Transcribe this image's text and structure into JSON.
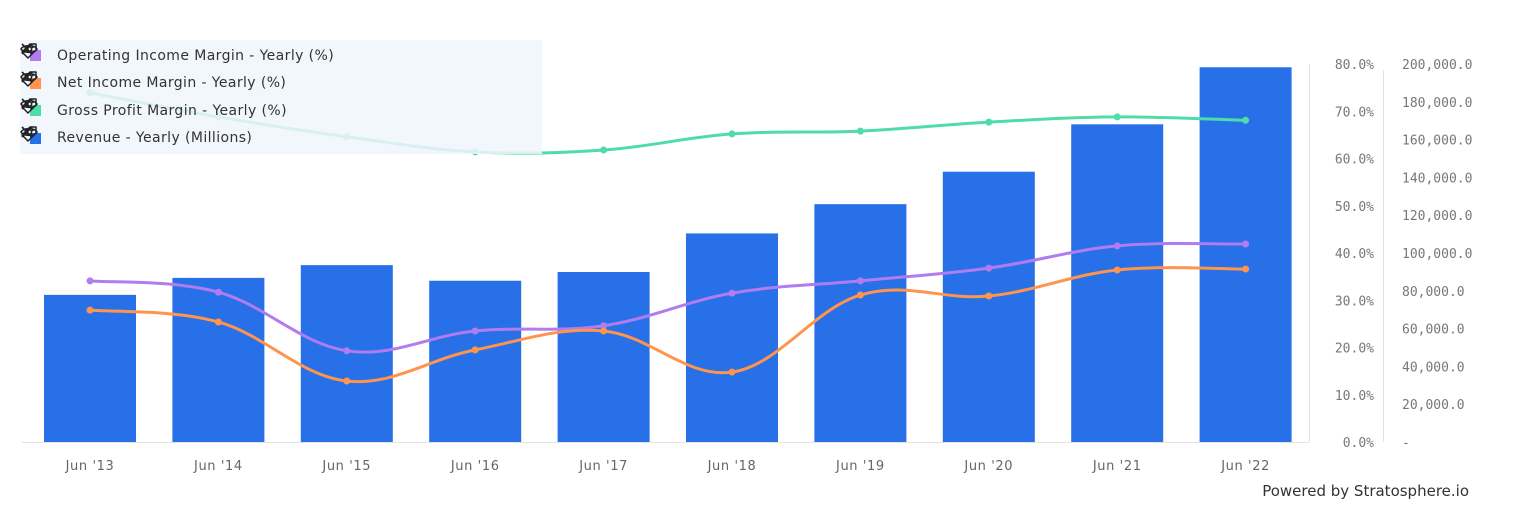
{
  "chart_data": {
    "type": "bar+line",
    "categories": [
      "Jun '13",
      "Jun '14",
      "Jun '15",
      "Jun '16",
      "Jun '17",
      "Jun '18",
      "Jun '19",
      "Jun '20",
      "Jun '21",
      "Jun '22"
    ],
    "series": [
      {
        "name": "Operating Income Margin - Yearly (%)",
        "type": "line",
        "axis": "left",
        "color": "#b07cf0",
        "values": [
          34.1,
          31.7,
          19.3,
          23.5,
          24.6,
          31.5,
          34.1,
          36.8,
          41.5,
          41.9
        ]
      },
      {
        "name": "Net Income Margin - Yearly (%)",
        "type": "line",
        "axis": "left",
        "color": "#ff944d",
        "values": [
          27.9,
          25.4,
          12.9,
          19.5,
          23.5,
          14.8,
          31.1,
          30.9,
          36.4,
          36.6
        ]
      },
      {
        "name": "Gross Profit Margin - Yearly (%)",
        "type": "line",
        "axis": "left",
        "color": "#4fdca6",
        "values": [
          73.9,
          68.8,
          64.6,
          61.4,
          61.8,
          65.2,
          65.8,
          67.7,
          68.8,
          68.1
        ]
      },
      {
        "name": "Revenue - Yearly (Millions)",
        "type": "bar",
        "axis": "right",
        "color": "#2770e8",
        "values": [
          77849,
          86833,
          93580,
          85320,
          89950,
          110360,
          125843,
          143015,
          168088,
          198270
        ]
      }
    ],
    "left_axis": {
      "ylim": [
        0,
        80
      ],
      "ticks": [
        "0.0%",
        "10.0%",
        "20.0%",
        "30.0%",
        "40.0%",
        "50.0%",
        "60.0%",
        "70.0%",
        "80.0%"
      ]
    },
    "right_axis": {
      "ylim": [
        0,
        200000
      ],
      "ticks": [
        "-",
        "20,000.0",
        "40,000.0",
        "60,000.0",
        "80,000.0",
        "100,000.0",
        "120,000.0",
        "140,000.0",
        "160,000.0",
        "180,000.0",
        "200,000.0"
      ]
    },
    "legend_placement": "top-left",
    "grid": false
  },
  "legend_icons": [
    "eye-icon",
    "tag-icon",
    "close-icon"
  ],
  "footer": "Powered by Stratosphere.io"
}
